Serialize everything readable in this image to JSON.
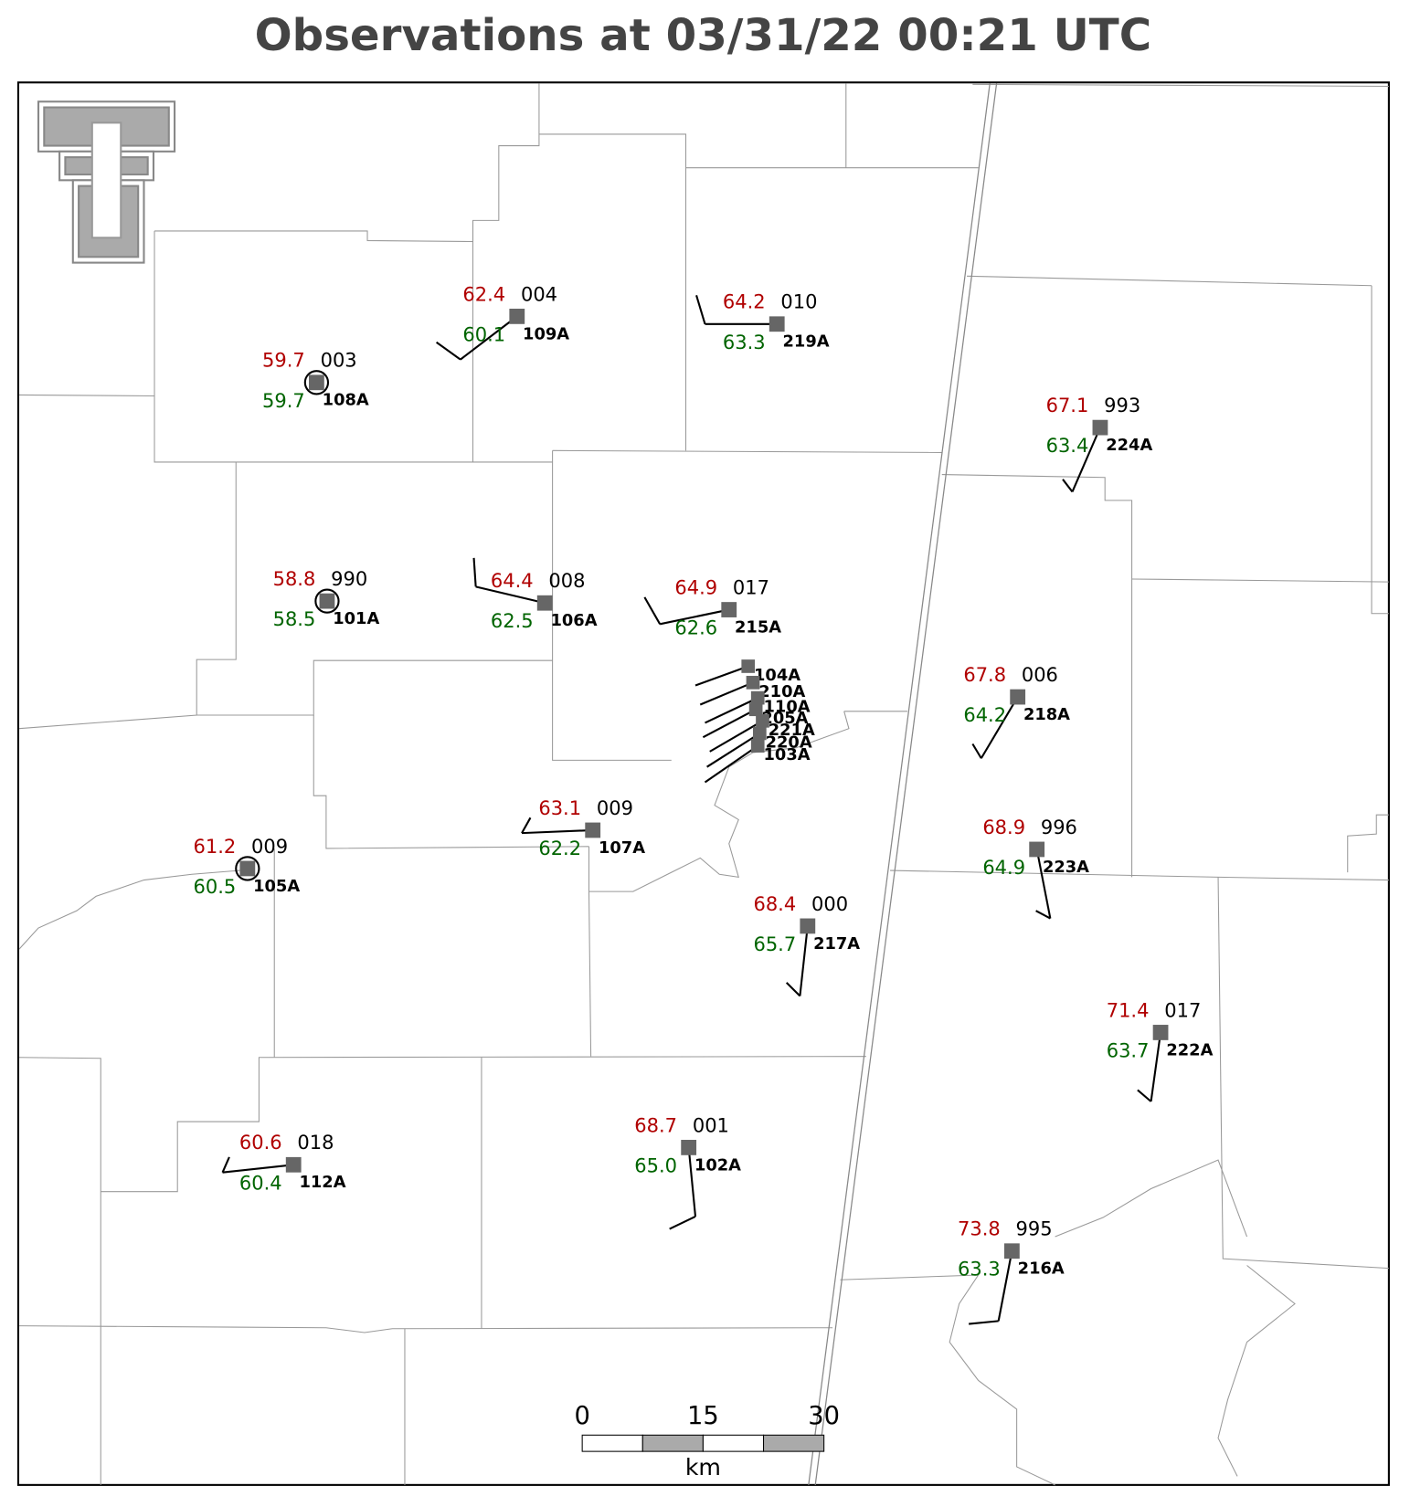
{
  "title": "Observations at 03/31/22 00:21 UTC",
  "stations": [
    {
      "id": "109A",
      "temperature": "62.4",
      "dewpoint": "60.1",
      "pressure": "004"
    },
    {
      "id": "219A",
      "temperature": "64.2",
      "dewpoint": "63.3",
      "pressure": "010"
    },
    {
      "id": "108A",
      "temperature": "59.7",
      "dewpoint": "59.7",
      "pressure": "003"
    },
    {
      "id": "224A",
      "temperature": "67.1",
      "dewpoint": "63.4",
      "pressure": "993"
    },
    {
      "id": "101A",
      "temperature": "58.8",
      "dewpoint": "58.5",
      "pressure": "990"
    },
    {
      "id": "106A",
      "temperature": "64.4",
      "dewpoint": "62.5",
      "pressure": "008"
    },
    {
      "id": "215A",
      "temperature": "64.9",
      "dewpoint": "62.6",
      "pressure": "017"
    },
    {
      "id": "218A",
      "temperature": "67.8",
      "dewpoint": "64.2",
      "pressure": "006"
    },
    {
      "id": "107A",
      "temperature": "63.1",
      "dewpoint": "62.2",
      "pressure": "009"
    },
    {
      "id": "105A",
      "temperature": "61.2",
      "dewpoint": "60.5",
      "pressure": "009"
    },
    {
      "id": "223A",
      "temperature": "68.9",
      "dewpoint": "64.9",
      "pressure": "996"
    },
    {
      "id": "217A",
      "temperature": "68.4",
      "dewpoint": "65.7",
      "pressure": "000"
    },
    {
      "id": "222A",
      "temperature": "71.4",
      "dewpoint": "63.7",
      "pressure": "017"
    },
    {
      "id": "112A",
      "temperature": "60.6",
      "dewpoint": "60.4",
      "pressure": "018"
    },
    {
      "id": "102A",
      "temperature": "68.7",
      "dewpoint": "65.0",
      "pressure": "001"
    },
    {
      "id": "216A",
      "temperature": "73.8",
      "dewpoint": "63.3",
      "pressure": "995"
    }
  ],
  "cluster_ids": [
    "104A",
    "210A",
    "110A",
    "205A",
    "221A",
    "220A",
    "103A"
  ],
  "scale_bar": {
    "ticks": [
      0,
      15,
      30
    ],
    "unit": "km"
  }
}
